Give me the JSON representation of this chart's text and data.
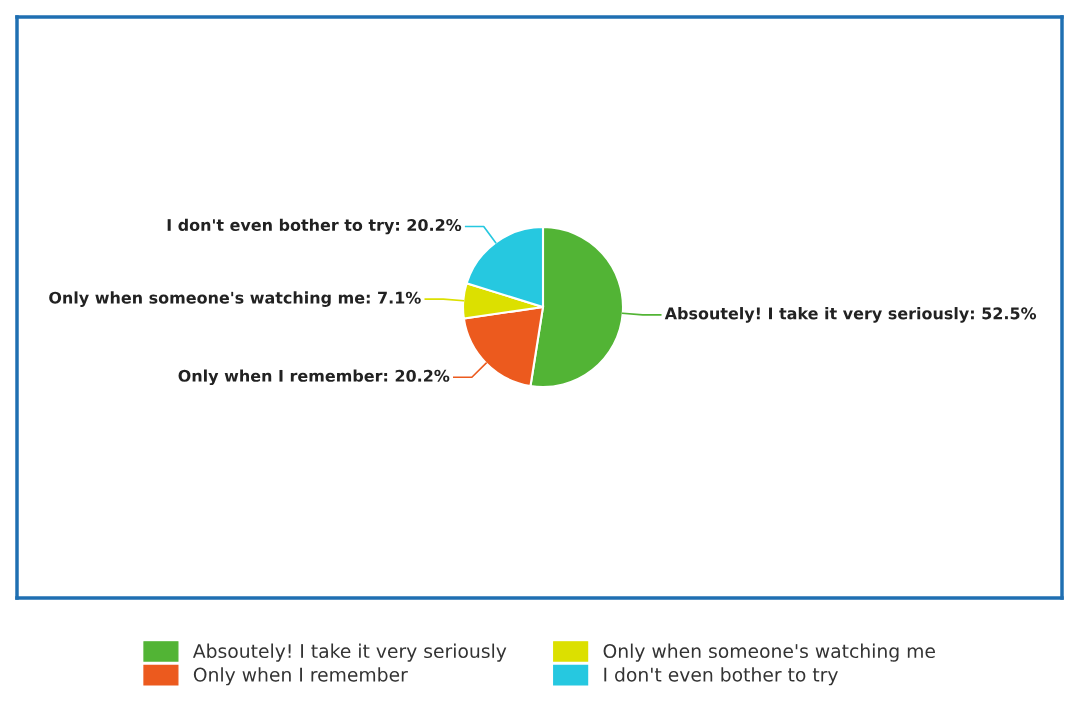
{
  "chart_data": {
    "type": "pie",
    "categories": [
      "Absoutely! I take it very seriously",
      "Only when I remember",
      "Only when someone's watching me",
      "I don't even bother to try"
    ],
    "values": [
      52.5,
      20.2,
      7.1,
      20.2
    ],
    "colors": [
      "#52b435",
      "#ec5a1e",
      "#dce000",
      "#26c8e0"
    ],
    "value_labels": [
      "Absoutely! I take it very seriously: 52.5%",
      "Only when I remember: 20.2%",
      "Only when someone's watching me: 7.1%",
      "I don't even bother to try: 20.2%"
    ],
    "legend": "bottom"
  }
}
